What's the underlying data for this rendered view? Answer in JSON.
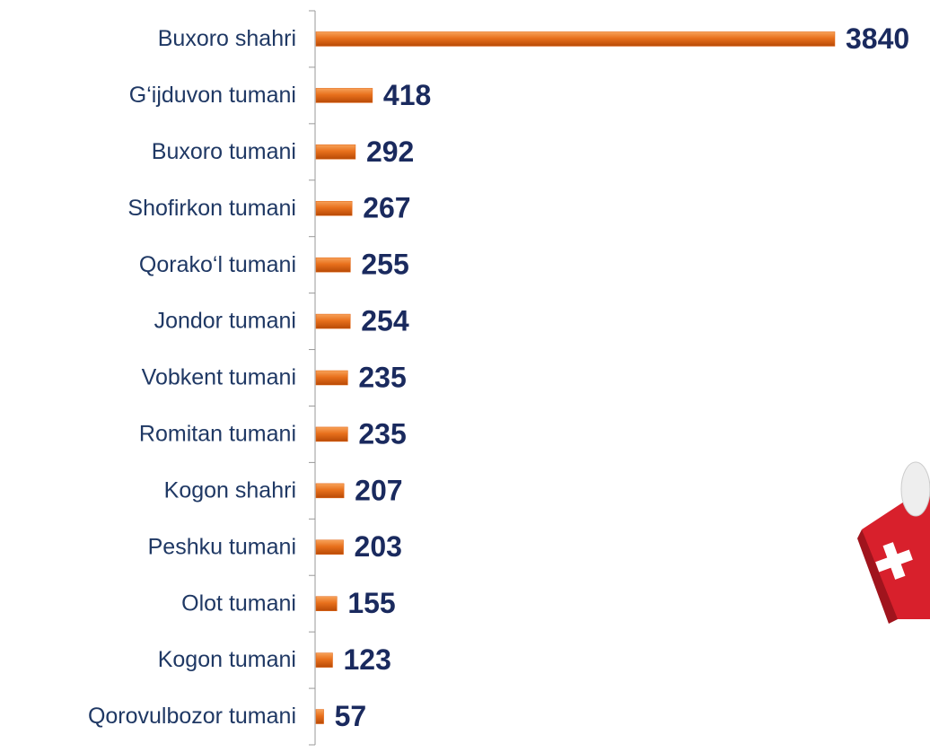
{
  "chart_data": {
    "type": "bar",
    "orientation": "horizontal",
    "color": "#e2620f",
    "categories": [
      "Buxoro shahri",
      "G‘ijduvon tumani",
      "Buxoro tumani",
      "Shofirkon tumani",
      "Qorako‘l tumani",
      "Jondor tumani",
      "Vobkent tumani",
      "Romitan tumani",
      "Kogon shahri",
      "Peshku tumani",
      "Olot tumani",
      "Kogon tumani",
      "Qorovulbozor tumani"
    ],
    "values": [
      3840,
      418,
      292,
      267,
      255,
      254,
      235,
      235,
      207,
      203,
      155,
      123,
      57
    ]
  }
}
